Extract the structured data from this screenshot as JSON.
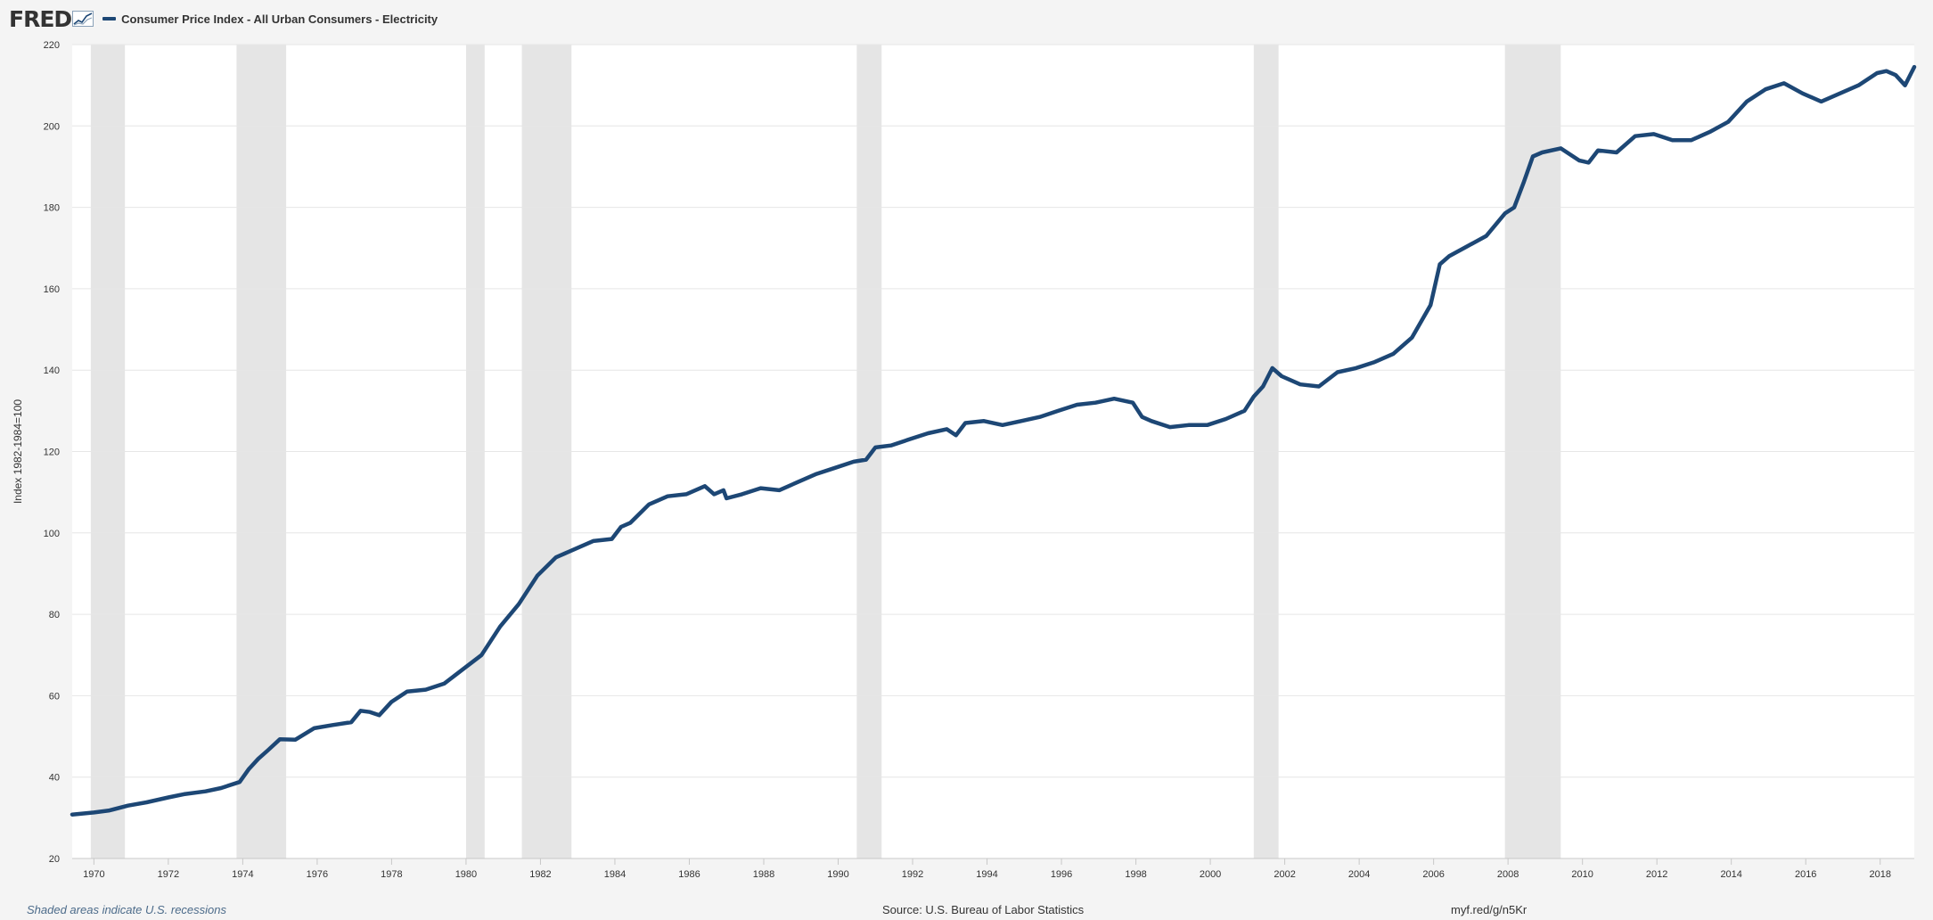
{
  "header": {
    "logo_text": "FRED",
    "logo_icon": "fred-graph-icon"
  },
  "colors": {
    "series": "#1d4775",
    "recession": "#e5e5e5",
    "plot_bg": "#ffffff",
    "grid": "#e6e6e6",
    "axis_text": "#333333"
  },
  "chart_data": {
    "type": "line",
    "title": "",
    "ylabel": "Index 1982-1984=100",
    "xlabel": "",
    "xlim": [
      "1969-06",
      "2018-12"
    ],
    "ylim": [
      20,
      220
    ],
    "yticks": [
      20,
      40,
      60,
      80,
      100,
      120,
      140,
      160,
      180,
      200,
      220
    ],
    "xticks": [
      "1970",
      "1972",
      "1974",
      "1976",
      "1978",
      "1980",
      "1982",
      "1984",
      "1986",
      "1988",
      "1990",
      "1992",
      "1994",
      "1996",
      "1998",
      "2000",
      "2002",
      "2004",
      "2006",
      "2008",
      "2010",
      "2012",
      "2014",
      "2016",
      "2018"
    ],
    "grid": true,
    "legend_position": "top-left",
    "recessions": [
      [
        "1969-12",
        "1970-11"
      ],
      [
        "1973-11",
        "1975-03"
      ],
      [
        "1980-01",
        "1980-07"
      ],
      [
        "1981-07",
        "1982-11"
      ],
      [
        "1990-07",
        "1991-03"
      ],
      [
        "2001-03",
        "2001-11"
      ],
      [
        "2007-12",
        "2009-06"
      ]
    ],
    "series": [
      {
        "name": "Consumer Price Index - All Urban Consumers - Electricity",
        "points": [
          [
            "1969-06",
            30.8
          ],
          [
            "1970-01",
            31.3
          ],
          [
            "1970-06",
            31.8
          ],
          [
            "1970-12",
            33.0
          ],
          [
            "1971-06",
            33.8
          ],
          [
            "1972-01",
            35.0
          ],
          [
            "1972-06",
            35.8
          ],
          [
            "1973-01",
            36.5
          ],
          [
            "1973-06",
            37.3
          ],
          [
            "1973-12",
            38.8
          ],
          [
            "1974-03",
            42.0
          ],
          [
            "1974-06",
            44.5
          ],
          [
            "1974-09",
            46.5
          ],
          [
            "1975-01",
            49.3
          ],
          [
            "1975-06",
            49.2
          ],
          [
            "1975-12",
            52.0
          ],
          [
            "1976-06",
            52.8
          ],
          [
            "1976-12",
            53.5
          ],
          [
            "1977-03",
            56.3
          ],
          [
            "1977-06",
            56.0
          ],
          [
            "1977-09",
            55.2
          ],
          [
            "1978-01",
            58.5
          ],
          [
            "1978-06",
            61.0
          ],
          [
            "1978-12",
            61.5
          ],
          [
            "1979-06",
            63.0
          ],
          [
            "1979-12",
            66.5
          ],
          [
            "1980-06",
            70.0
          ],
          [
            "1980-12",
            77.0
          ],
          [
            "1981-06",
            82.5
          ],
          [
            "1981-12",
            89.5
          ],
          [
            "1982-06",
            94.0
          ],
          [
            "1982-12",
            96.0
          ],
          [
            "1983-06",
            98.0
          ],
          [
            "1983-12",
            98.5
          ],
          [
            "1984-03",
            101.5
          ],
          [
            "1984-06",
            102.5
          ],
          [
            "1984-12",
            107.0
          ],
          [
            "1985-06",
            109.0
          ],
          [
            "1985-12",
            109.5
          ],
          [
            "1986-06",
            111.5
          ],
          [
            "1986-09",
            109.5
          ],
          [
            "1986-12",
            110.5
          ],
          [
            "1987-01",
            108.5
          ],
          [
            "1987-06",
            109.5
          ],
          [
            "1987-12",
            111.0
          ],
          [
            "1988-06",
            110.5
          ],
          [
            "1988-12",
            112.5
          ],
          [
            "1989-06",
            114.5
          ],
          [
            "1989-12",
            116.0
          ],
          [
            "1990-06",
            117.5
          ],
          [
            "1990-10",
            118.0
          ],
          [
            "1991-01",
            121.0
          ],
          [
            "1991-06",
            121.5
          ],
          [
            "1991-12",
            123.0
          ],
          [
            "1992-06",
            124.5
          ],
          [
            "1992-12",
            125.5
          ],
          [
            "1993-03",
            124.0
          ],
          [
            "1993-06",
            127.0
          ],
          [
            "1993-12",
            127.5
          ],
          [
            "1994-06",
            126.5
          ],
          [
            "1994-12",
            127.5
          ],
          [
            "1995-06",
            128.5
          ],
          [
            "1995-12",
            130.0
          ],
          [
            "1996-06",
            131.5
          ],
          [
            "1996-12",
            132.0
          ],
          [
            "1997-06",
            133.0
          ],
          [
            "1997-12",
            132.0
          ],
          [
            "1998-03",
            128.5
          ],
          [
            "1998-06",
            127.5
          ],
          [
            "1998-12",
            126.0
          ],
          [
            "1999-06",
            126.5
          ],
          [
            "1999-12",
            126.5
          ],
          [
            "2000-06",
            128.0
          ],
          [
            "2000-12",
            130.0
          ],
          [
            "2001-03",
            133.5
          ],
          [
            "2001-06",
            136.0
          ],
          [
            "2001-09",
            140.5
          ],
          [
            "2001-12",
            138.5
          ],
          [
            "2002-06",
            136.5
          ],
          [
            "2002-12",
            136.0
          ],
          [
            "2003-06",
            139.5
          ],
          [
            "2003-12",
            140.5
          ],
          [
            "2004-06",
            142.0
          ],
          [
            "2004-12",
            144.0
          ],
          [
            "2005-06",
            148.0
          ],
          [
            "2005-12",
            156.0
          ],
          [
            "2006-03",
            166.0
          ],
          [
            "2006-06",
            168.0
          ],
          [
            "2006-12",
            170.5
          ],
          [
            "2007-06",
            173.0
          ],
          [
            "2007-12",
            178.5
          ],
          [
            "2008-03",
            180.0
          ],
          [
            "2008-06",
            186.0
          ],
          [
            "2008-09",
            192.5
          ],
          [
            "2008-12",
            193.5
          ],
          [
            "2009-06",
            194.5
          ],
          [
            "2009-12",
            191.5
          ],
          [
            "2010-03",
            191.0
          ],
          [
            "2010-06",
            194.0
          ],
          [
            "2010-12",
            193.5
          ],
          [
            "2011-06",
            197.5
          ],
          [
            "2011-12",
            198.0
          ],
          [
            "2012-06",
            196.5
          ],
          [
            "2012-12",
            196.5
          ],
          [
            "2013-06",
            198.5
          ],
          [
            "2013-12",
            201.0
          ],
          [
            "2014-06",
            206.0
          ],
          [
            "2014-12",
            209.0
          ],
          [
            "2015-06",
            210.5
          ],
          [
            "2015-12",
            208.0
          ],
          [
            "2016-06",
            206.0
          ],
          [
            "2016-12",
            208.0
          ],
          [
            "2017-06",
            210.0
          ],
          [
            "2017-12",
            213.0
          ],
          [
            "2018-03",
            213.5
          ],
          [
            "2018-06",
            212.5
          ],
          [
            "2018-09",
            210.0
          ],
          [
            "2018-12",
            214.5
          ]
        ]
      }
    ]
  },
  "footer": {
    "note": "Shaded areas indicate U.S. recessions",
    "source": "Source: U.S. Bureau of Labor Statistics",
    "link": "myf.red/g/n5Kr"
  }
}
